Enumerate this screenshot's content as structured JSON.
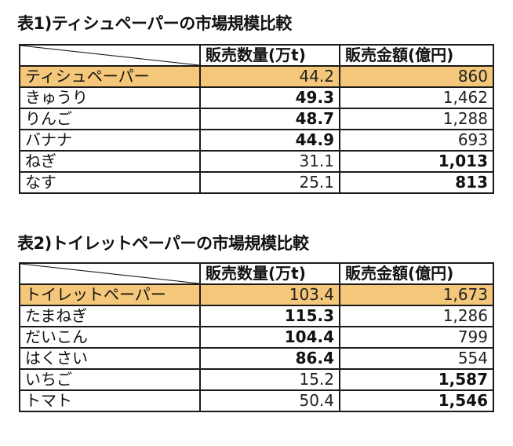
{
  "table1": {
    "caption": "表1)ティシュペーパーの市場規模比較",
    "headers": [
      "販売数量(万t)",
      "販売金額(億円)"
    ],
    "rows": [
      {
        "name": "ティシュペーパー",
        "qty": "44.2",
        "amount": "860"
      },
      {
        "name": "きゅうり",
        "qty": "49.3",
        "amount": "1,462"
      },
      {
        "name": "りんご",
        "qty": "48.7",
        "amount": "1,288"
      },
      {
        "name": "バナナ",
        "qty": "44.9",
        "amount": "693"
      },
      {
        "name": "ねぎ",
        "qty": "31.1",
        "amount": "1,013"
      },
      {
        "name": "なす",
        "qty": "25.1",
        "amount": "813"
      }
    ]
  },
  "table2": {
    "caption": "表2)トイレットペーパーの市場規模比較",
    "headers": [
      "販売数量(万t)",
      "販売金額(億円)"
    ],
    "rows": [
      {
        "name": "トイレットペーパー",
        "qty": "103.4",
        "amount": "1,673"
      },
      {
        "name": "たまねぎ",
        "qty": "115.3",
        "amount": "1,286"
      },
      {
        "name": "だいこん",
        "qty": "104.4",
        "amount": "799"
      },
      {
        "name": "はくさい",
        "qty": "86.4",
        "amount": "554"
      },
      {
        "name": "いちご",
        "qty": "15.2",
        "amount": "1,587"
      },
      {
        "name": "トマト",
        "qty": "50.4",
        "amount": "1,546"
      }
    ]
  },
  "colors": {
    "highlight": "#f5c77a",
    "border": "#1a1a1a"
  }
}
